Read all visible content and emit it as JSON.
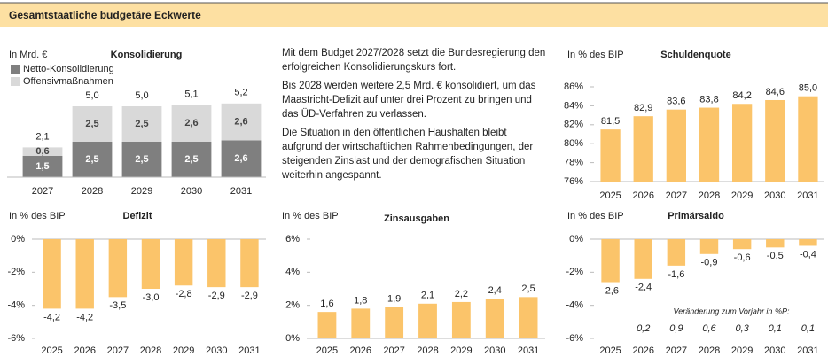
{
  "title": "Gesamtstaatliche budgetäre Eckwerte",
  "text": [
    "Mit dem Budget 2027/2028 setzt die Bundesregierung den erfolgreichen Konsolidierungskurs fort.",
    "Bis 2028 werden weitere 2,5 Mrd. € konsolidiert, um das Maastricht-Defizit auf unter drei Prozent zu bringen und das ÜD-Verfahren zu verlassen.",
    "Die Situation in den öffentlichen Haushalten bleibt aufgrund der wirtschaftlichen Rahmenbedingungen, der steigenden Zinslast und der demografischen Situation weiterhin angespannt."
  ],
  "chart_data": [
    {
      "type": "stacked_bar",
      "title": "Konsolidierung",
      "unit": "In Mrd. €",
      "categories": [
        "2027",
        "2028",
        "2029",
        "2030",
        "2031"
      ],
      "series": [
        {
          "name": "Netto-Konsolidierung",
          "color": "#7f7f7f",
          "values": [
            1.5,
            2.5,
            2.5,
            2.5,
            2.6
          ],
          "value_labels": [
            "1,5",
            "2,5",
            "2,5",
            "2,5",
            "2,6"
          ]
        },
        {
          "name": "Offensivmaßnahmen",
          "color": "#d9d9d9",
          "values": [
            0.6,
            2.5,
            2.5,
            2.6,
            2.6
          ],
          "value_labels": [
            "0,6",
            "2,5",
            "2,5",
            "2,6",
            "2,6"
          ]
        }
      ],
      "totals": [
        {
          "value": 2.1,
          "label": "2,1"
        },
        {
          "value": 5.0,
          "label": "5,0"
        },
        {
          "value": 5.0,
          "label": "5,0"
        },
        {
          "value": 5.1,
          "label": "5,1"
        },
        {
          "value": 5.2,
          "label": "5,2"
        }
      ]
    },
    {
      "type": "bar",
      "title": "Schuldenquote",
      "unit": "In % des BIP",
      "color": "#fbc46a",
      "categories": [
        "2025",
        "2026",
        "2027",
        "2028",
        "2029",
        "2030",
        "2031"
      ],
      "values": [
        81.5,
        82.9,
        83.6,
        83.8,
        84.2,
        84.6,
        85.0
      ],
      "value_labels": [
        "81,5",
        "82,9",
        "83,6",
        "83,8",
        "84,2",
        "84,6",
        "85,0"
      ],
      "ylim": [
        76,
        86
      ],
      "yticks": [
        {
          "value": 76,
          "label": "76%"
        },
        {
          "value": 78,
          "label": "78%"
        },
        {
          "value": 80,
          "label": "80%"
        },
        {
          "value": 82,
          "label": "82%"
        },
        {
          "value": 84,
          "label": "84%"
        },
        {
          "value": 86,
          "label": "86%"
        }
      ]
    },
    {
      "type": "bar",
      "title": "Defizit",
      "unit": "In % des BIP",
      "color": "#fbc46a",
      "categories": [
        "2025",
        "2026",
        "2027",
        "2028",
        "2029",
        "2030",
        "2031"
      ],
      "values": [
        -4.2,
        -4.2,
        -3.5,
        -3.0,
        -2.8,
        -2.9,
        -2.9
      ],
      "value_labels": [
        "-4,2",
        "-4,2",
        "-3,5",
        "-3,0",
        "-2,8",
        "-2,9",
        "-2,9"
      ],
      "ylim": [
        -6,
        0
      ],
      "yticks": [
        {
          "value": 0,
          "label": "0%"
        },
        {
          "value": -2,
          "label": "-2%"
        },
        {
          "value": -4,
          "label": "-4%"
        },
        {
          "value": -6,
          "label": "-6%"
        }
      ]
    },
    {
      "type": "bar",
      "title": "Zinsausgaben",
      "unit": "In % des BIP",
      "color": "#fbc46a",
      "categories": [
        "2025",
        "2026",
        "2027",
        "2028",
        "2029",
        "2030",
        "2031"
      ],
      "values": [
        1.6,
        1.8,
        1.9,
        2.1,
        2.2,
        2.4,
        2.5
      ],
      "value_labels": [
        "1,6",
        "1,8",
        "1,9",
        "2,1",
        "2,2",
        "2,4",
        "2,5"
      ],
      "ylim": [
        0,
        6
      ],
      "yticks": [
        {
          "value": 0,
          "label": "0%"
        },
        {
          "value": 2,
          "label": "2%"
        },
        {
          "value": 4,
          "label": "4%"
        },
        {
          "value": 6,
          "label": "6%"
        }
      ]
    },
    {
      "type": "bar",
      "title": "Primärsaldo",
      "unit": "In % des BIP",
      "color": "#fbc46a",
      "categories": [
        "2025",
        "2026",
        "2027",
        "2028",
        "2029",
        "2030",
        "2031"
      ],
      "values": [
        -2.6,
        -2.4,
        -1.6,
        -0.9,
        -0.6,
        -0.5,
        -0.4
      ],
      "value_labels": [
        "-2,6",
        "-2,4",
        "-1,6",
        "-0,9",
        "-0,6",
        "-0,5",
        "-0,4"
      ],
      "ylim": [
        -6,
        0
      ],
      "yticks": [
        {
          "value": 0,
          "label": "0%"
        },
        {
          "value": -2,
          "label": "-2%"
        },
        {
          "value": -4,
          "label": "-4%"
        },
        {
          "value": -6,
          "label": "-6%"
        }
      ],
      "annotation": "Veränderung zum Vorjahr in %P:",
      "changes": [
        {
          "value": 0.2,
          "label": "0,2"
        },
        {
          "value": 0.9,
          "label": "0,9"
        },
        {
          "value": 0.6,
          "label": "0,6"
        },
        {
          "value": 0.3,
          "label": "0,3"
        },
        {
          "value": 0.1,
          "label": "0,1"
        },
        {
          "value": 0.1,
          "label": "0,1"
        }
      ]
    }
  ]
}
